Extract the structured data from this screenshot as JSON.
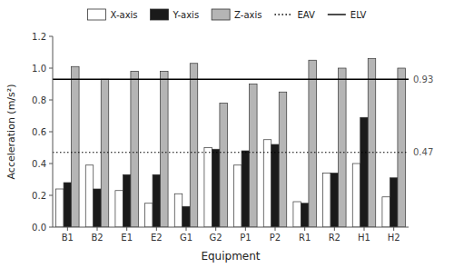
{
  "chart_data": {
    "type": "bar",
    "categories": [
      "B1",
      "B2",
      "E1",
      "E2",
      "G1",
      "G2",
      "P1",
      "P2",
      "R1",
      "R2",
      "H1",
      "H2"
    ],
    "series": [
      {
        "name": "X-axis",
        "color": "#ffffff",
        "values": [
          0.24,
          0.39,
          0.23,
          0.15,
          0.21,
          0.5,
          0.39,
          0.55,
          0.16,
          0.34,
          0.4,
          0.19
        ]
      },
      {
        "name": "Y-axis",
        "color": "#1a1a1a",
        "values": [
          0.28,
          0.24,
          0.33,
          0.33,
          0.13,
          0.49,
          0.48,
          0.52,
          0.15,
          0.34,
          0.69,
          0.31
        ]
      },
      {
        "name": "Z-axis",
        "color": "#b5b5b5",
        "values": [
          1.01,
          0.93,
          0.98,
          0.98,
          1.03,
          0.78,
          0.9,
          0.85,
          1.05,
          1.0,
          1.06,
          1.0
        ]
      }
    ],
    "reference_lines": [
      {
        "name": "EAV",
        "value": 0.47,
        "label": "0.47",
        "line_style": "dotted"
      },
      {
        "name": "ELV",
        "value": 0.93,
        "label": "0.93",
        "line_style": "solid"
      }
    ],
    "xlabel": "Equipment",
    "ylabel": "Acceleration (m/s²)",
    "ylim": [
      0,
      1.2
    ],
    "yticks": [
      {
        "value": 0,
        "label": "0.0"
      },
      0.2,
      0.4,
      0.6,
      0.8,
      {
        "value": 1.0,
        "label": "1.0"
      },
      1.2
    ],
    "grid": false,
    "legend": "top"
  }
}
